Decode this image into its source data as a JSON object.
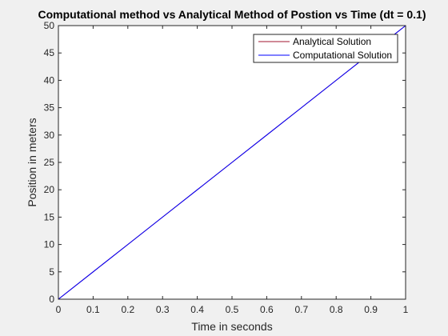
{
  "chart_data": {
    "type": "line",
    "title": "Computational method vs Analytical Method of Postion vs Time (dt = 0.1)",
    "xlabel": "Time in seconds",
    "ylabel": "Position in meters",
    "xlim": [
      0,
      1
    ],
    "ylim": [
      0,
      50
    ],
    "xticks": [
      0,
      0.1,
      0.2,
      0.3,
      0.4,
      0.5,
      0.6,
      0.7,
      0.8,
      0.9,
      1
    ],
    "yticks": [
      0,
      5,
      10,
      15,
      20,
      25,
      30,
      35,
      40,
      45,
      50
    ],
    "xtick_labels": [
      "0",
      "0.1",
      "0.2",
      "0.3",
      "0.4",
      "0.5",
      "0.6",
      "0.7",
      "0.8",
      "0.9",
      "1"
    ],
    "ytick_labels": [
      "0",
      "5",
      "10",
      "15",
      "20",
      "25",
      "30",
      "35",
      "40",
      "45",
      "50"
    ],
    "grid": false,
    "legend_position": "top-right",
    "series": [
      {
        "name": "Analytical Solution",
        "color": "#a2142f",
        "x": [
          0,
          0.1,
          0.2,
          0.3,
          0.4,
          0.5,
          0.6,
          0.7,
          0.8,
          0.9,
          1
        ],
        "y": [
          0,
          5,
          10,
          15,
          20,
          25,
          30,
          35,
          40,
          45,
          50
        ]
      },
      {
        "name": "Computational Solution",
        "color": "#0000ff",
        "x": [
          0,
          0.1,
          0.2,
          0.3,
          0.4,
          0.5,
          0.6,
          0.7,
          0.8,
          0.9,
          1
        ],
        "y": [
          0,
          5,
          10,
          15,
          20,
          25,
          30,
          35,
          40,
          45,
          50
        ]
      }
    ]
  }
}
